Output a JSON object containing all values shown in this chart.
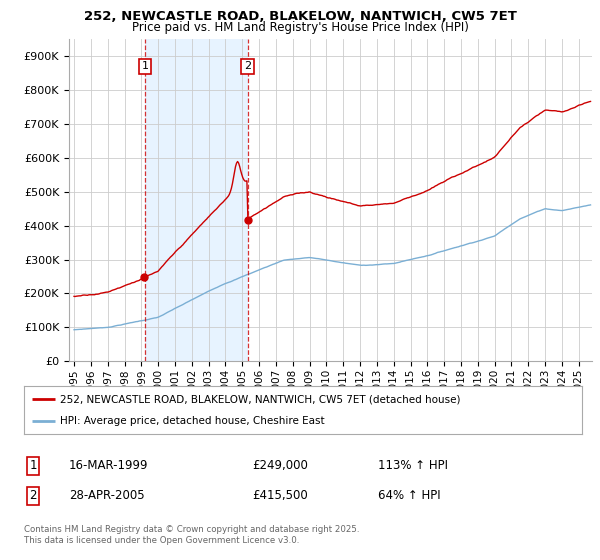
{
  "title_line1": "252, NEWCASTLE ROAD, BLAKELOW, NANTWICH, CW5 7ET",
  "title_line2": "Price paid vs. HM Land Registry's House Price Index (HPI)",
  "ylim": [
    0,
    950000
  ],
  "yticks": [
    0,
    100000,
    200000,
    300000,
    400000,
    500000,
    600000,
    700000,
    800000,
    900000
  ],
  "ytick_labels": [
    "£0",
    "£100K",
    "£200K",
    "£300K",
    "£400K",
    "£500K",
    "£600K",
    "£700K",
    "£800K",
    "£900K"
  ],
  "xlim_start": 1994.7,
  "xlim_end": 2025.8,
  "xticks": [
    1995,
    1996,
    1997,
    1998,
    1999,
    2000,
    2001,
    2002,
    2003,
    2004,
    2005,
    2006,
    2007,
    2008,
    2009,
    2010,
    2011,
    2012,
    2013,
    2014,
    2015,
    2016,
    2017,
    2018,
    2019,
    2020,
    2021,
    2022,
    2023,
    2024,
    2025
  ],
  "red_line_color": "#cc0000",
  "blue_line_color": "#7bafd4",
  "shade_color": "#ddeeff",
  "marker1_year": 1999.21,
  "marker1_value": 249000,
  "marker2_year": 2005.33,
  "marker2_value": 415500,
  "legend_label_red": "252, NEWCASTLE ROAD, BLAKELOW, NANTWICH, CW5 7ET (detached house)",
  "legend_label_blue": "HPI: Average price, detached house, Cheshire East",
  "table_entries": [
    {
      "num": "1",
      "date": "16-MAR-1999",
      "price": "£249,000",
      "hpi": "113% ↑ HPI"
    },
    {
      "num": "2",
      "date": "28-APR-2005",
      "price": "£415,500",
      "hpi": "64% ↑ HPI"
    }
  ],
  "footer": "Contains HM Land Registry data © Crown copyright and database right 2025.\nThis data is licensed under the Open Government Licence v3.0.",
  "background_color": "#ffffff",
  "grid_color": "#cccccc"
}
